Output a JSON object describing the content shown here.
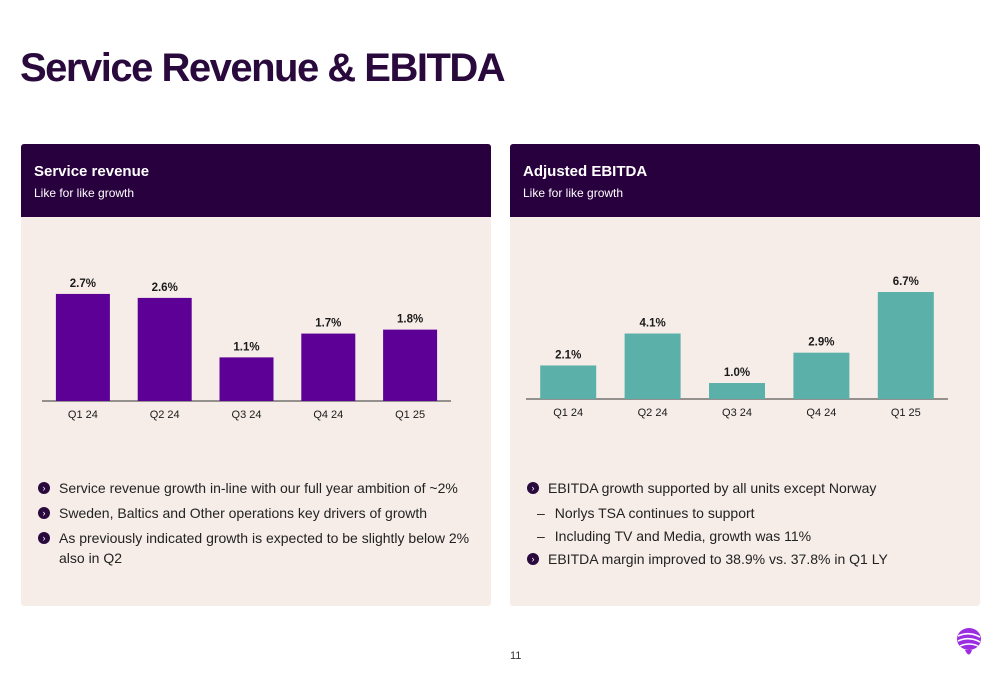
{
  "page": {
    "title": "Service Revenue & EBITDA",
    "number": "11"
  },
  "colors": {
    "brand": "#2a0a3d",
    "service_bar": "#5c0096",
    "ebitda_bar": "#5bb1a9",
    "panel_bg": "#f6ede8",
    "header_bg": "#29003e"
  },
  "left": {
    "title": "Service revenue",
    "subtitle": "Like for like growth",
    "bullets": [
      "Service revenue growth in-line with our full year ambition of ~2%",
      "Sweden, Baltics and Other operations key drivers of growth",
      "As previously indicated growth is expected to be slightly below 2% also in Q2"
    ]
  },
  "right": {
    "title": "Adjusted EBITDA",
    "subtitle": "Like for like growth",
    "bullets": [
      "EBITDA growth supported by all units except Norway",
      "EBITDA margin improved to 38.9% vs. 37.8% in Q1 LY"
    ],
    "sub_bullets": [
      "Norlys TSA continues to support",
      "Including TV and Media, growth was 11%"
    ]
  },
  "chart_data": [
    {
      "type": "bar",
      "categories": [
        "Q1 24",
        "Q2 24",
        "Q3 24",
        "Q4 24",
        "Q1 25"
      ],
      "values": [
        2.7,
        2.6,
        1.1,
        1.7,
        1.8
      ],
      "data_labels": [
        "2.7%",
        "2.6%",
        "1.1%",
        "1.7%",
        "1.8%"
      ],
      "title": "Service revenue",
      "subtitle": "Like for like growth",
      "ylim": [
        0,
        2.9
      ],
      "grid": false,
      "color": "#5c0096"
    },
    {
      "type": "bar",
      "categories": [
        "Q1 24",
        "Q2 24",
        "Q3 24",
        "Q4 24",
        "Q1 25"
      ],
      "values": [
        2.1,
        4.1,
        1.0,
        2.9,
        6.7
      ],
      "data_labels": [
        "2.1%",
        "4.1%",
        "1.0%",
        "2.9%",
        "6.7%"
      ],
      "title": "Adjusted EBITDA",
      "subtitle": "Like for like growth",
      "ylim": [
        0,
        7.2
      ],
      "grid": false,
      "color": "#5bb1a9"
    }
  ]
}
